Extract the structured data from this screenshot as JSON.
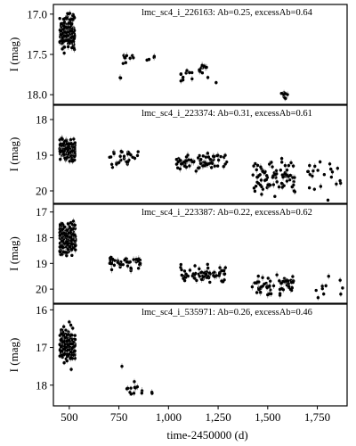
{
  "chart_data": {
    "type": "scatter",
    "xlabel": "time-2450000 (d)",
    "xlim": [
      420,
      1900
    ],
    "xticks": [
      500,
      750,
      1000,
      1250,
      1500,
      1750
    ],
    "xtick_labels": [
      "500",
      "750",
      "1,000",
      "1,250",
      "1,500",
      "1,750"
    ],
    "ylabel": "I (mag)",
    "y_inverted": true,
    "marker_color": "#000000",
    "error_bar_color": "#999999",
    "panels": [
      {
        "title": "lmc_sc4_i_226163: Ab=0.25, excessAb=0.64",
        "ylim": [
          16.88,
          18.12
        ],
        "yticks": [
          17.0,
          17.5,
          18.0
        ],
        "ytick_labels": [
          "17.0",
          "17.5",
          "18.0"
        ],
        "clusters": [
          {
            "x": [
              452,
              528
            ],
            "y": [
              16.95,
              17.5
            ],
            "n": 190
          },
          {
            "x": [
              740,
              760
            ],
            "y": [
              17.78,
              17.82
            ],
            "n": 2
          },
          {
            "x": [
              770,
              830
            ],
            "y": [
              17.45,
              17.65
            ],
            "n": 9
          },
          {
            "x": [
              870,
              940
            ],
            "y": [
              17.45,
              17.62
            ],
            "n": 4
          },
          {
            "x": [
              1060,
              1130
            ],
            "y": [
              17.65,
              17.9
            ],
            "n": 10
          },
          {
            "x": [
              1150,
              1200
            ],
            "y": [
              17.55,
              17.82
            ],
            "n": 12
          },
          {
            "x": [
              1220,
              1240
            ],
            "y": [
              17.85,
              17.85
            ],
            "n": 1
          },
          {
            "x": [
              1540,
              1600
            ],
            "y": [
              17.9,
              18.1
            ],
            "n": 8
          }
        ]
      },
      {
        "title": "lmc_sc4_i_223374: Ab=0.31, excessAb=0.61",
        "ylim": [
          17.6,
          20.35
        ],
        "yticks": [
          18,
          19,
          20
        ],
        "ytick_labels": [
          "18",
          "19",
          "20"
        ],
        "clusters": [
          {
            "x": [
              452,
              530
            ],
            "y": [
              18.5,
              19.2
            ],
            "n": 220
          },
          {
            "x": [
              700,
              850
            ],
            "y": [
              18.7,
              19.4
            ],
            "n": 28
          },
          {
            "x": [
              1040,
              1300
            ],
            "y": [
              18.9,
              19.5
            ],
            "n": 70
          },
          {
            "x": [
              1420,
              1640
            ],
            "y": [
              19.0,
              20.2
            ],
            "n": 80
          },
          {
            "x": [
              1700,
              1870
            ],
            "y": [
              19.1,
              20.2
            ],
            "n": 22
          }
        ]
      },
      {
        "title": "lmc_sc4_i_223387: Ab=0.22, excessAb=0.62",
        "ylim": [
          16.7,
          20.55
        ],
        "yticks": [
          17,
          18,
          19,
          20
        ],
        "ytick_labels": [
          "17",
          "18",
          "19",
          "20"
        ],
        "clusters": [
          {
            "x": [
              452,
              532
            ],
            "y": [
              17.3,
              18.8
            ],
            "n": 230
          },
          {
            "x": [
              700,
              860
            ],
            "y": [
              18.6,
              19.4
            ],
            "n": 45
          },
          {
            "x": [
              1060,
              1300
            ],
            "y": [
              19.0,
              19.8
            ],
            "n": 65
          },
          {
            "x": [
              1420,
              1640
            ],
            "y": [
              19.3,
              20.5
            ],
            "n": 60
          },
          {
            "x": [
              1740,
              1880
            ],
            "y": [
              19.2,
              20.5
            ],
            "n": 10
          }
        ]
      },
      {
        "title": "lmc_sc4_i_535971: Ab=0.26, excessAb=0.46",
        "ylim": [
          15.85,
          18.55
        ],
        "yticks": [
          16,
          17,
          18
        ],
        "ytick_labels": [
          "16",
          "17",
          "18"
        ],
        "clusters": [
          {
            "x": [
              452,
              530
            ],
            "y": [
              16.4,
              17.5
            ],
            "n": 190
          },
          {
            "x": [
              760,
              780
            ],
            "y": [
              17.5,
              17.5
            ],
            "n": 1
          },
          {
            "x": [
              790,
              880
            ],
            "y": [
              17.8,
              18.35
            ],
            "n": 12
          },
          {
            "x": [
              900,
              960
            ],
            "y": [
              18.1,
              18.3
            ],
            "n": 2
          }
        ]
      }
    ]
  }
}
